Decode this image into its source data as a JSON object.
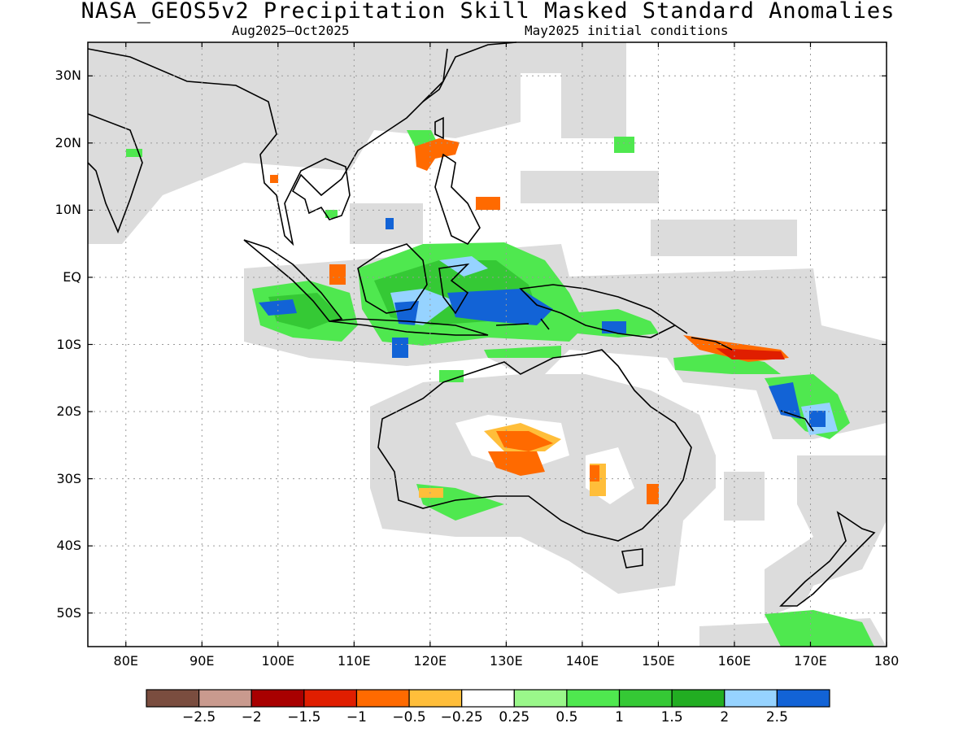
{
  "title": "NASA_GEOS5v2 Precipitation Skill Masked Standard Anomalies",
  "subtitle_left": "Aug2025–Oct2025",
  "subtitle_right": "May2025 initial conditions",
  "lat_labels": [
    "30N",
    "20N",
    "10N",
    "EQ",
    "10S",
    "20S",
    "30S",
    "40S",
    "50S"
  ],
  "lon_labels": [
    "80E",
    "90E",
    "100E",
    "110E",
    "120E",
    "130E",
    "140E",
    "150E",
    "160E",
    "170E",
    "180"
  ],
  "colorbar": {
    "colors": [
      "#7a4d3f",
      "#c99a8e",
      "#a80000",
      "#e01e00",
      "#ff6a00",
      "#ffbe3a",
      "#ffffff",
      "#9af78a",
      "#4fe84f",
      "#35c935",
      "#22ad22",
      "#96d3ff",
      "#1263d6"
    ],
    "labels": [
      "−2.5",
      "−2",
      "−1.5",
      "−1",
      "−0.5",
      "−0.25",
      "0.25",
      "0.5",
      "1",
      "1.5",
      "2",
      "2.5"
    ]
  },
  "colors": {
    "masked": "#dcdcdc",
    "coast": "#000000",
    "grid": "#9a9a9a"
  }
}
